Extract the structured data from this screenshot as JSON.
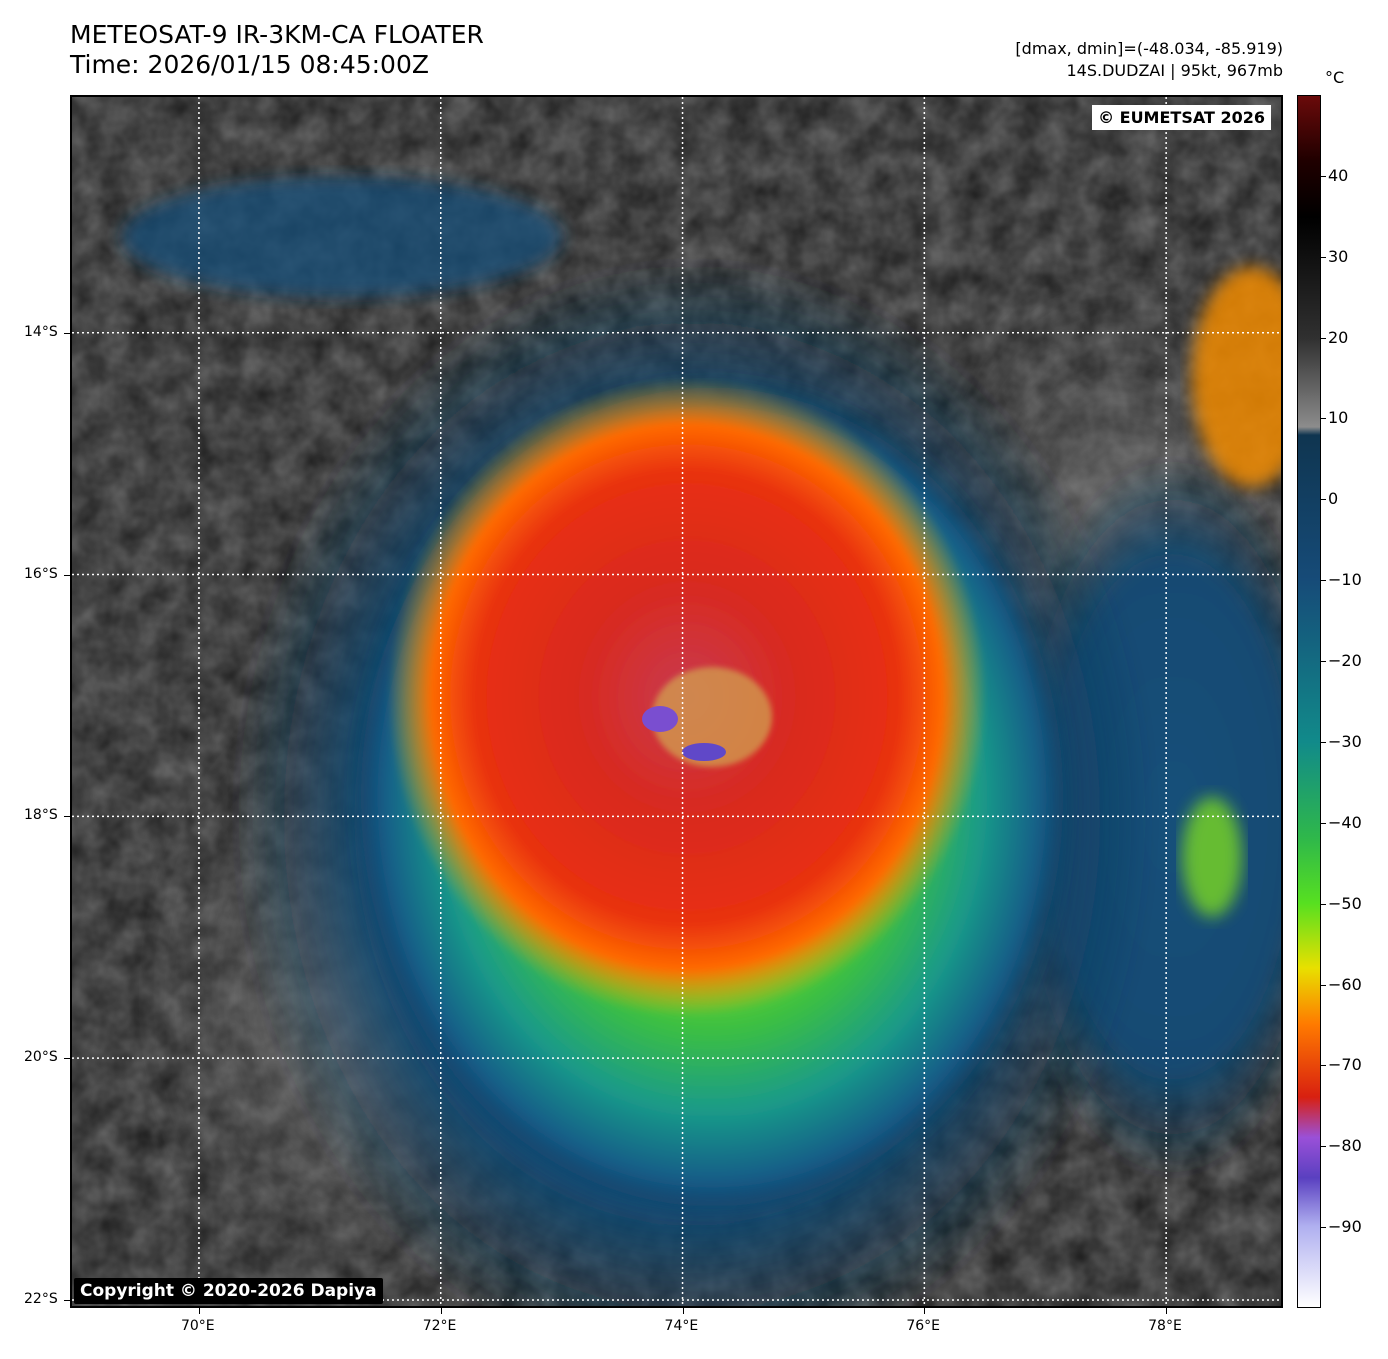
{
  "title": {
    "line1": "METEOSAT-9 IR-3KM-CA FLOATER",
    "line2": "Time: 2026/01/15 08:45:00Z"
  },
  "meta": {
    "line1": "[dmax, dmin]=(-48.034, -85.919)",
    "line2": "14S.DUDZAI | 95kt, 967mb"
  },
  "badges": {
    "eumetsat": "© EUMETSAT 2026",
    "copyright": "Copyright © 2020-2026 Dapiya"
  },
  "axes": {
    "lon_range": [
      68.95,
      78.95
    ],
    "lat_range": [
      -12.05,
      -22.05
    ],
    "lon_ticks": [
      70,
      72,
      74,
      76,
      78
    ],
    "lon_labels": [
      "70°E",
      "72°E",
      "74°E",
      "76°E",
      "78°E"
    ],
    "lat_ticks": [
      -14,
      -16,
      -18,
      -20,
      -22
    ],
    "lat_labels": [
      "14°S",
      "16°S",
      "18°S",
      "20°S",
      "22°S"
    ],
    "gridlines": true
  },
  "storm": {
    "center_lon": 74.1,
    "center_lat": -17.35,
    "name": "14S.DUDZAI"
  },
  "colorbar": {
    "unit": "°C",
    "range": [
      -100,
      50
    ],
    "ticks": [
      40,
      30,
      20,
      10,
      0,
      -10,
      -20,
      -30,
      -40,
      -50,
      -60,
      -70,
      -80,
      -90
    ],
    "tick_labels": [
      "40",
      "30",
      "20",
      "10",
      "0",
      "−10",
      "−20",
      "−30",
      "−40",
      "−50",
      "−60",
      "−70",
      "−80",
      "−90"
    ],
    "stops": [
      {
        "t": 50,
        "color": "#6a0a0a"
      },
      {
        "t": 42,
        "color": "#200000"
      },
      {
        "t": 35,
        "color": "#000000"
      },
      {
        "t": 20,
        "color": "#303030"
      },
      {
        "t": 9,
        "color": "#8c8c8c"
      },
      {
        "t": 8,
        "color": "#0f3550"
      },
      {
        "t": -10,
        "color": "#164b78"
      },
      {
        "t": -30,
        "color": "#118a8a"
      },
      {
        "t": -42,
        "color": "#2fb84a"
      },
      {
        "t": -50,
        "color": "#57e020"
      },
      {
        "t": -58,
        "color": "#e8e000"
      },
      {
        "t": -65,
        "color": "#ff7a00"
      },
      {
        "t": -74,
        "color": "#d82010"
      },
      {
        "t": -79,
        "color": "#9a50d8"
      },
      {
        "t": -84,
        "color": "#5a40c0"
      },
      {
        "t": -90,
        "color": "#b0b0f0"
      },
      {
        "t": -100,
        "color": "#ffffff"
      }
    ]
  }
}
